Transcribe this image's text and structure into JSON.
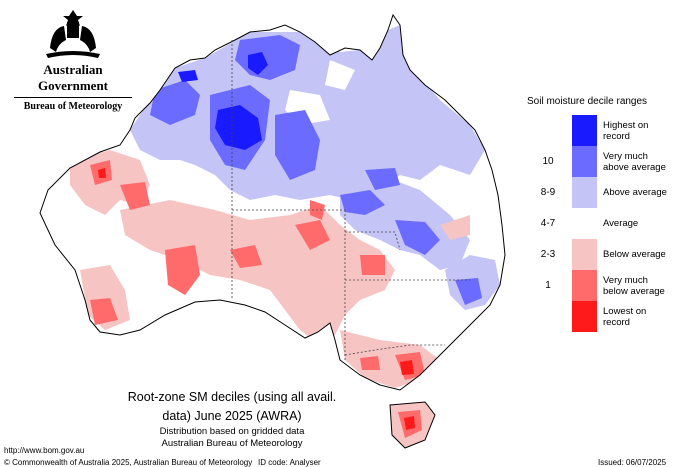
{
  "logo": {
    "government": "Australian Government",
    "bureau": "Bureau of Meteorology"
  },
  "legend": {
    "title": "Soil moisture decile ranges",
    "items": [
      {
        "label": "Highest on\nrecord",
        "color": "#1a1aff",
        "decile": ""
      },
      {
        "label": "Very much\nabove average",
        "color": "#6b6bff",
        "decile": "10"
      },
      {
        "label": "Above average",
        "color": "#c4c4f7",
        "decile": "8-9"
      },
      {
        "label": "Average",
        "color": "#ffffff",
        "decile": "4-7"
      },
      {
        "label": "Below average",
        "color": "#f7c4c4",
        "decile": "2-3"
      },
      {
        "label": "Very much\nbelow average",
        "color": "#ff6b6b",
        "decile": "1"
      },
      {
        "label": "Lowest on\nrecord",
        "color": "#ff1a1a",
        "decile": ""
      }
    ]
  },
  "caption": {
    "line1": "Root-zone SM deciles (using all avail.",
    "line2": "data) June 2025 (AWRA)",
    "line3": "Distribution based on gridded data",
    "line4": "Australian Bureau of Meteorology"
  },
  "footer": {
    "url": "http://www.bom.gov.au",
    "copyright": "© Commonwealth of Australia 2025, Australian Bureau of Meteorology",
    "id_code": "ID code: Analyser",
    "issued": "Issued: 06/07/2025"
  }
}
